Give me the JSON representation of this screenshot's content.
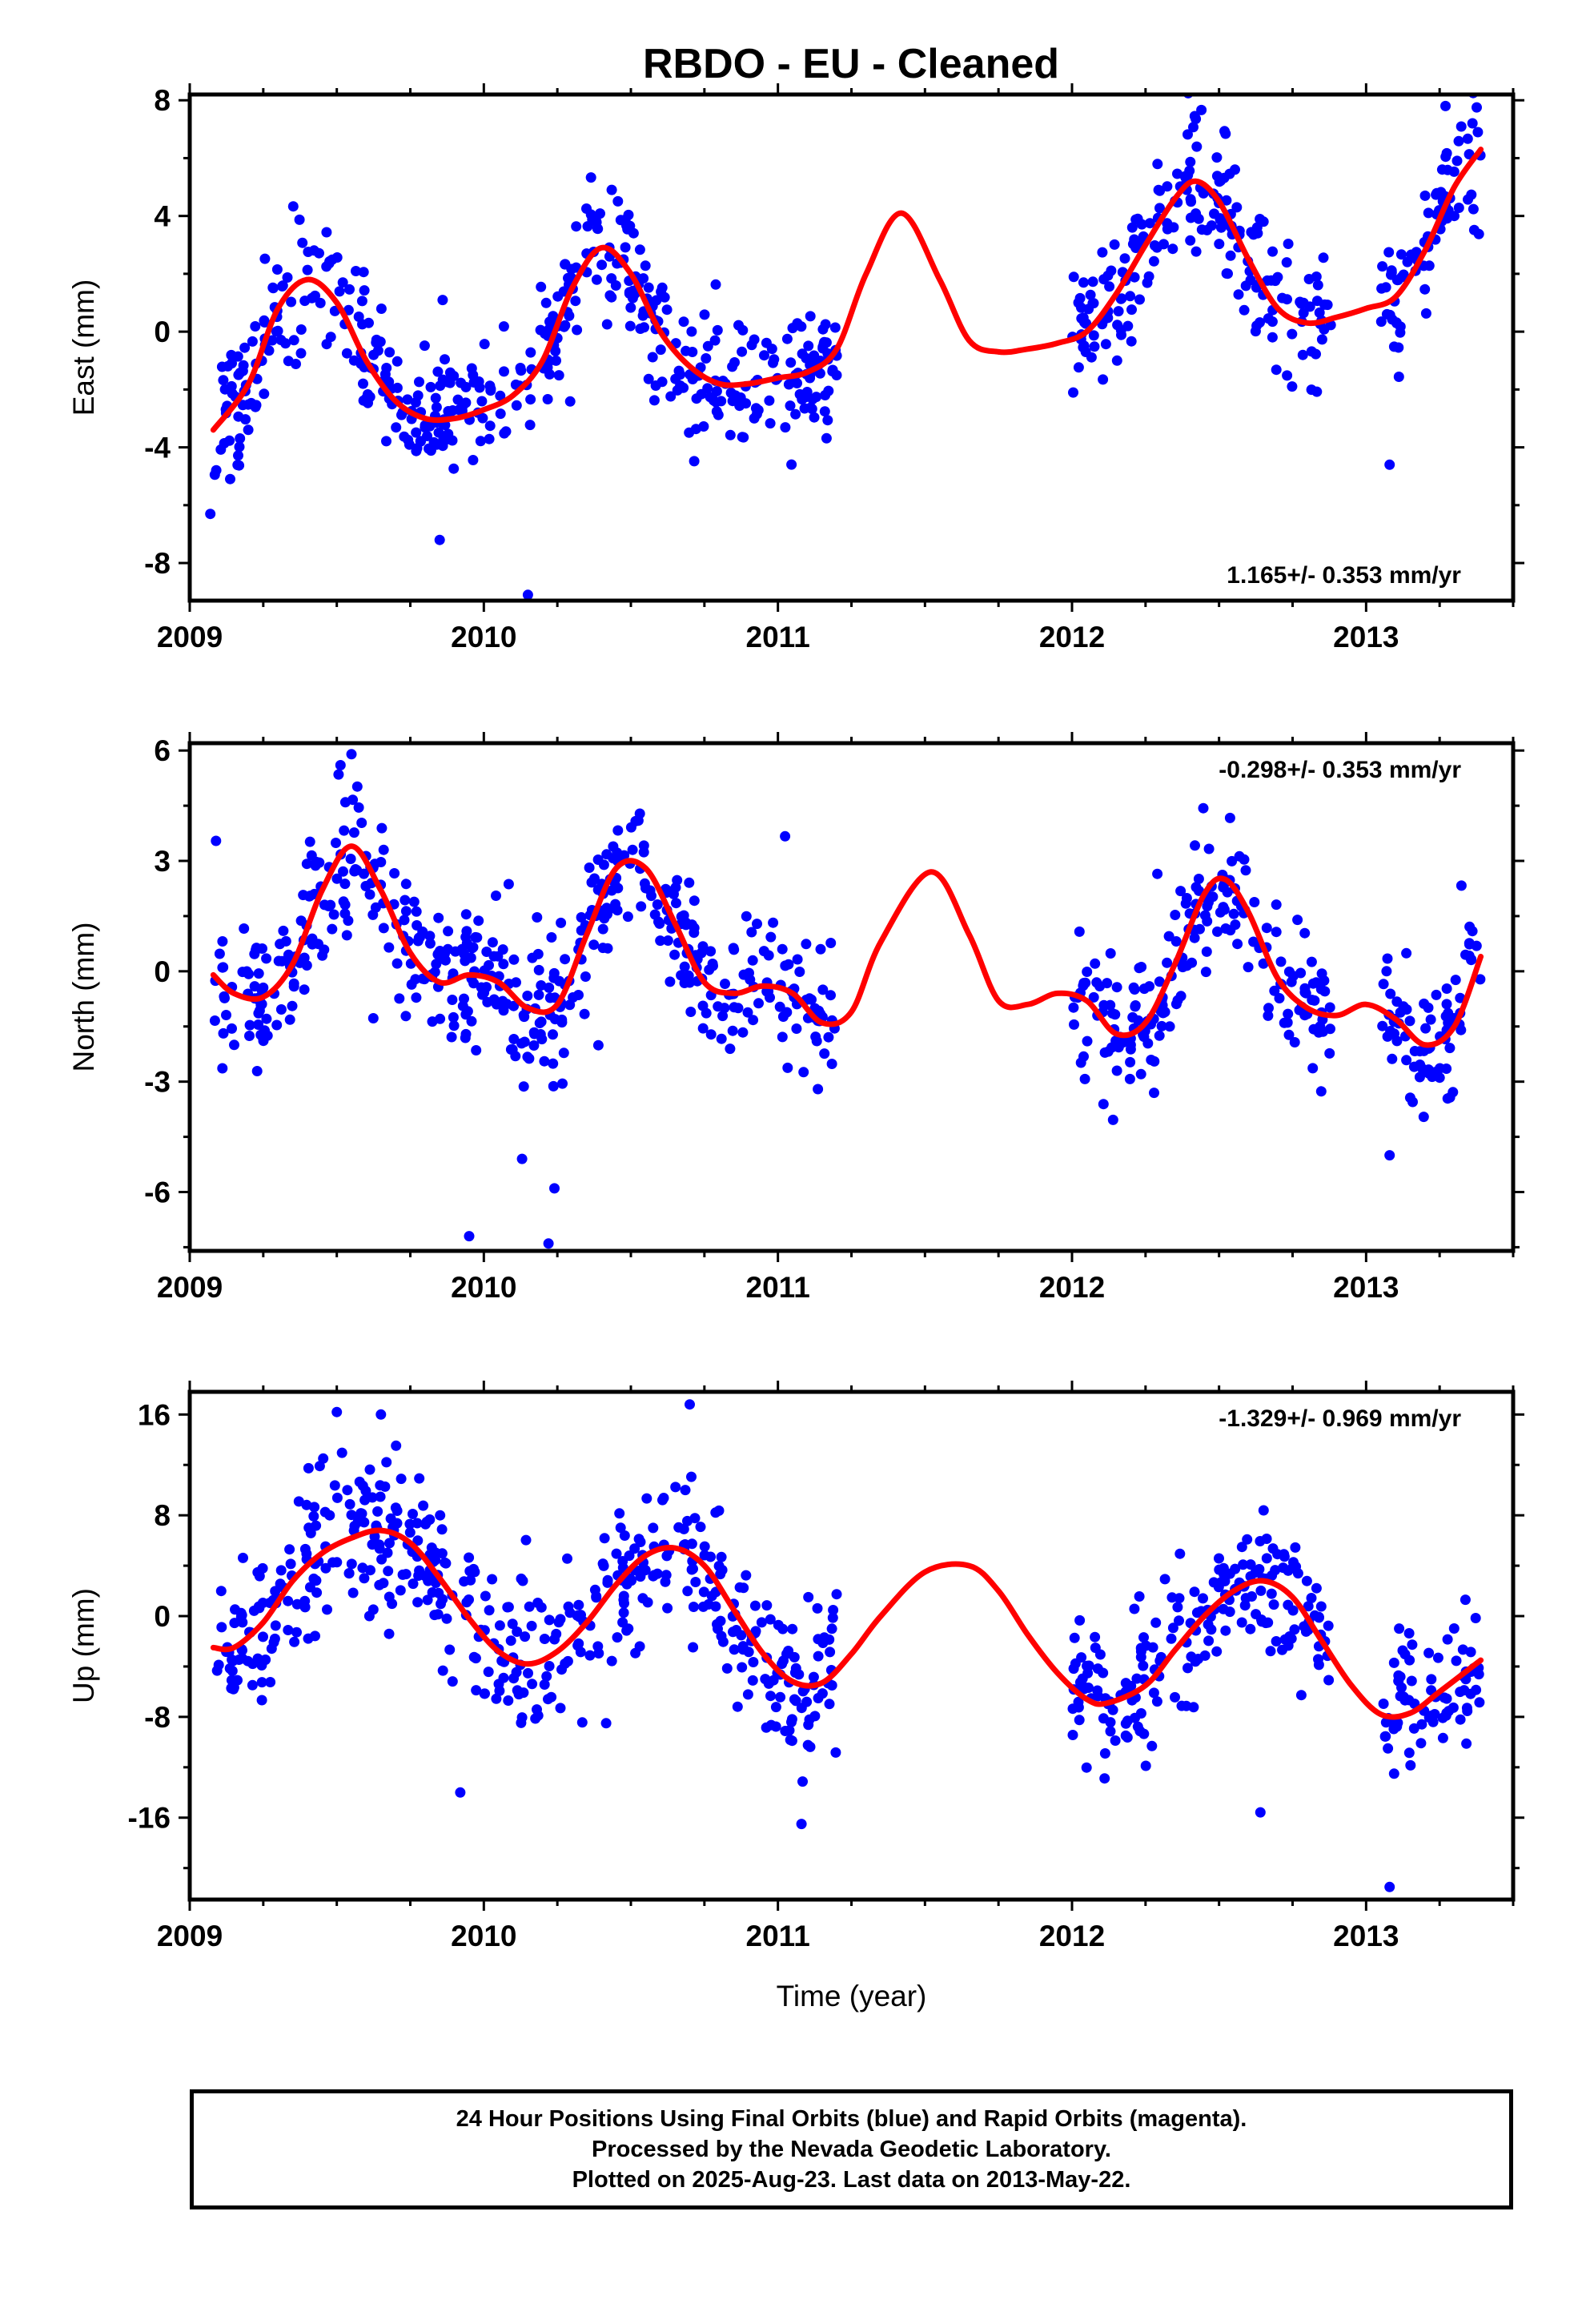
{
  "title": "RBDO  - EU - Cleaned",
  "footer": {
    "line1": "24 Hour Positions Using Final Orbits (blue) and Rapid Orbits (magenta).",
    "line2": "Processed by the Nevada Geodetic Laboratory.",
    "line3": "Plotted on 2025-Aug-23. Last data on 2013-May-22."
  },
  "colors": {
    "data_points": "#0000ff",
    "model_fit": "#ff0000",
    "frame": "#000000"
  },
  "chart_data": [
    {
      "type": "scatter",
      "ylabel": "East (mm)",
      "xlabel": "",
      "xlim": [
        2009.0,
        2013.5
      ],
      "ylim": [
        -9.3,
        8.2
      ],
      "xticks": [
        2009,
        2010,
        2011,
        2012,
        2013
      ],
      "yticks": [
        -8,
        -4,
        0,
        4,
        8
      ],
      "rate_text": "1.165+/- 0.353 mm/yr",
      "rate_position": "bottom-right",
      "segments": [
        [
          2009.08,
          2011.2
        ],
        [
          2012.0,
          2012.88
        ],
        [
          2013.05,
          2013.39
        ]
      ],
      "fit": {
        "x": [
          2009.08,
          2009.2,
          2009.3,
          2009.4,
          2009.5,
          2009.6,
          2009.7,
          2009.8,
          2009.9,
          2010.0,
          2010.1,
          2010.2,
          2010.3,
          2010.4,
          2010.5,
          2010.6,
          2010.7,
          2010.8,
          2010.9,
          2011.0,
          2011.1,
          2011.2,
          2011.3,
          2011.42,
          2011.55,
          2011.65,
          2011.75,
          2011.85,
          2011.95,
          2012.05,
          2012.15,
          2012.25,
          2012.35,
          2012.42,
          2012.5,
          2012.6,
          2012.7,
          2012.8,
          2012.9,
          2013.0,
          2013.1,
          2013.2,
          2013.3,
          2013.39
        ],
        "y": [
          -3.4,
          -1.8,
          0.8,
          1.8,
          1.0,
          -1.0,
          -2.4,
          -3.0,
          -3.0,
          -2.7,
          -2.2,
          -1.0,
          1.5,
          2.9,
          2.0,
          0.0,
          -1.2,
          -1.8,
          -1.8,
          -1.6,
          -1.4,
          -0.6,
          2.0,
          4.1,
          1.8,
          -0.3,
          -0.7,
          -0.6,
          -0.4,
          0.0,
          1.3,
          3.0,
          4.6,
          5.2,
          4.5,
          2.5,
          0.8,
          0.3,
          0.5,
          0.8,
          1.2,
          2.8,
          5.0,
          6.3
        ]
      },
      "scatter": {
        "n": 760,
        "seed": 11,
        "sigma": 1.1,
        "outliers": [
          [
            2010.15,
            -9.1
          ],
          [
            2009.85,
            -7.2
          ],
          [
            2013.08,
            -4.6
          ],
          [
            2009.07,
            -6.3
          ],
          [
            2013.27,
            7.8
          ]
        ]
      }
    },
    {
      "type": "scatter",
      "ylabel": "North (mm)",
      "xlabel": "",
      "xlim": [
        2009.0,
        2013.5
      ],
      "ylim": [
        -7.6,
        6.2
      ],
      "xticks": [
        2009,
        2010,
        2011,
        2012,
        2013
      ],
      "yticks": [
        -6,
        -3,
        0,
        3,
        6
      ],
      "rate_text": "-0.298+/- 0.353 mm/yr",
      "rate_position": "top-right",
      "segments": [
        [
          2009.08,
          2011.2
        ],
        [
          2012.0,
          2012.88
        ],
        [
          2013.05,
          2013.39
        ]
      ],
      "fit": {
        "x": [
          2009.08,
          2009.15,
          2009.25,
          2009.35,
          2009.45,
          2009.55,
          2009.65,
          2009.75,
          2009.85,
          2009.95,
          2010.05,
          2010.15,
          2010.25,
          2010.35,
          2010.45,
          2010.55,
          2010.65,
          2010.75,
          2010.85,
          2010.95,
          2011.05,
          2011.15,
          2011.25,
          2011.35,
          2011.52,
          2011.65,
          2011.75,
          2011.85,
          2011.95,
          2012.05,
          2012.15,
          2012.25,
          2012.35,
          2012.45,
          2012.52,
          2012.6,
          2012.7,
          2012.8,
          2012.9,
          2013.0,
          2013.1,
          2013.2,
          2013.3,
          2013.39
        ],
        "y": [
          -0.1,
          -0.6,
          -0.7,
          0.2,
          2.2,
          3.4,
          2.2,
          0.5,
          -0.3,
          -0.1,
          -0.3,
          -1.0,
          -0.9,
          1.0,
          2.8,
          2.8,
          1.3,
          -0.3,
          -0.6,
          -0.4,
          -0.6,
          -1.4,
          -1.1,
          0.8,
          2.7,
          1.0,
          -0.8,
          -0.9,
          -0.6,
          -0.8,
          -1.7,
          -1.4,
          0.2,
          2.1,
          2.5,
          1.6,
          -0.2,
          -1.0,
          -1.2,
          -0.9,
          -1.3,
          -2.0,
          -1.5,
          0.4
        ]
      },
      "scatter": {
        "n": 760,
        "seed": 23,
        "sigma": 0.95,
        "outliers": [
          [
            2009.95,
            -7.2
          ],
          [
            2010.22,
            -7.4
          ],
          [
            2010.24,
            -5.9
          ],
          [
            2010.13,
            -5.1
          ],
          [
            2013.08,
            -5.0
          ],
          [
            2009.55,
            5.9
          ]
        ]
      }
    },
    {
      "type": "scatter",
      "ylabel": "Up (mm)",
      "xlabel": "Time (year)",
      "xlim": [
        2009.0,
        2013.5
      ],
      "ylim": [
        -22.5,
        17.8
      ],
      "xticks": [
        2009,
        2010,
        2011,
        2012,
        2013
      ],
      "yticks": [
        -16,
        -8,
        0,
        8,
        16
      ],
      "rate_text": "-1.329+/- 0.969 mm/yr",
      "rate_position": "top-right",
      "segments": [
        [
          2009.08,
          2011.2
        ],
        [
          2012.0,
          2012.88
        ],
        [
          2013.05,
          2013.39
        ]
      ],
      "fit": {
        "x": [
          2009.08,
          2009.15,
          2009.25,
          2009.35,
          2009.45,
          2009.55,
          2009.65,
          2009.75,
          2009.85,
          2009.95,
          2010.05,
          2010.15,
          2010.25,
          2010.35,
          2010.45,
          2010.55,
          2010.65,
          2010.75,
          2010.85,
          2010.95,
          2011.05,
          2011.15,
          2011.25,
          2011.35,
          2011.5,
          2011.65,
          2011.75,
          2011.85,
          2011.95,
          2012.05,
          2012.12,
          2012.25,
          2012.35,
          2012.45,
          2012.55,
          2012.65,
          2012.75,
          2012.85,
          2012.95,
          2013.05,
          2013.15,
          2013.25,
          2013.39
        ],
        "y": [
          -2.5,
          -2.5,
          -0.5,
          2.8,
          5.0,
          6.2,
          6.8,
          5.8,
          3.0,
          -0.2,
          -2.8,
          -3.8,
          -2.8,
          -0.5,
          2.5,
          4.8,
          5.4,
          4.0,
          0.5,
          -3.0,
          -5.2,
          -5.3,
          -3.0,
          0.0,
          3.5,
          4.0,
          2.0,
          -1.5,
          -4.5,
          -6.6,
          -6.9,
          -5.5,
          -2.7,
          0.0,
          2.0,
          2.8,
          1.5,
          -2.0,
          -5.5,
          -7.8,
          -7.7,
          -6.0,
          -3.5
        ]
      },
      "scatter": {
        "n": 760,
        "seed": 37,
        "sigma": 3.0,
        "outliers": [
          [
            2013.08,
            -21.5
          ],
          [
            2010.7,
            16.8
          ],
          [
            2009.5,
            16.2
          ],
          [
            2009.65,
            16.0
          ],
          [
            2011.08,
            -16.5
          ],
          [
            2009.92,
            -14.0
          ]
        ]
      }
    }
  ]
}
